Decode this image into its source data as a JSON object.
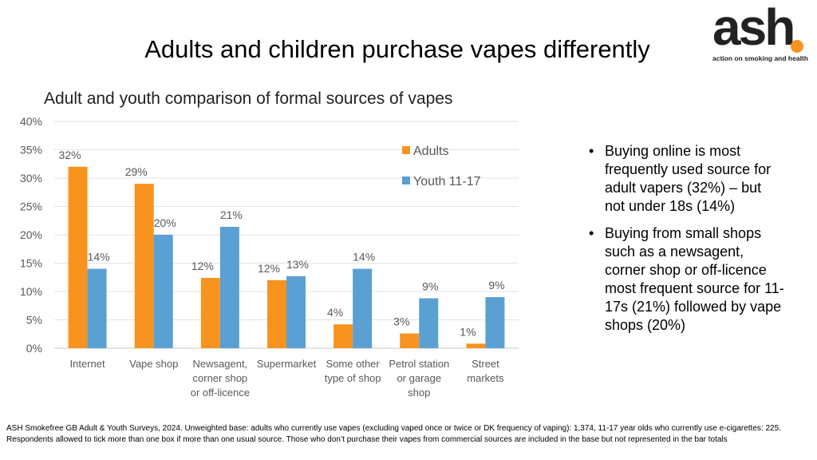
{
  "slide": {
    "title": "Adults and children purchase vapes differently",
    "logo": {
      "word": "ash",
      "tagline": "action on smoking and health",
      "accent_color": "#f7931e"
    },
    "bullets": [
      "Buying online is most frequently used source for adult vapers (32%) – but not under 18s (14%)",
      "Buying from small shops such as a newsagent, corner shop or off-licence most frequent source for 11-17s (21%) followed by vape shops (20%)"
    ],
    "footnote": "ASH Smokefree GB Adult & Youth Surveys, 2024. Unweighted base: adults who currently use vapes (excluding vaped once or twice or DK frequency of vaping): 1,374, 11-17 year olds who currently use e-cigarettes: 225. Respondents allowed to tick more than one box if more than one usual source. Those who don’t purchase their vapes from commercial sources are included in the base but not represented in the bar totals"
  },
  "chart_data": {
    "type": "bar",
    "title": "Adult and youth comparison of formal sources of vapes",
    "categories": [
      [
        "Internet"
      ],
      [
        "Vape shop"
      ],
      [
        "Newsagent,",
        "corner shop",
        "or off-licence"
      ],
      [
        "Supermarket"
      ],
      [
        "Some other",
        "type of shop"
      ],
      [
        "Petrol station",
        "or garage",
        "shop"
      ],
      [
        "Street",
        "markets"
      ]
    ],
    "series": [
      {
        "name": "Adults",
        "color": "#f7931e",
        "values": [
          32,
          29,
          12.4,
          12,
          4.2,
          2.6,
          0.8
        ],
        "labels": [
          "32%",
          "29%",
          "12%",
          "12%",
          "4%",
          "3%",
          "1%"
        ]
      },
      {
        "name": "Youth 11-17",
        "color": "#5aa0d2",
        "values": [
          14,
          20,
          21.4,
          12.7,
          14,
          8.8,
          9
        ],
        "labels": [
          "14%",
          "20%",
          "21%",
          "13%",
          "14%",
          "9%",
          "9%"
        ]
      }
    ],
    "y_ticks": [
      "0%",
      "5%",
      "10%",
      "15%",
      "20%",
      "25%",
      "30%",
      "35%",
      "40%"
    ],
    "ylim": [
      0,
      40
    ],
    "grid": true,
    "legend": "right"
  }
}
